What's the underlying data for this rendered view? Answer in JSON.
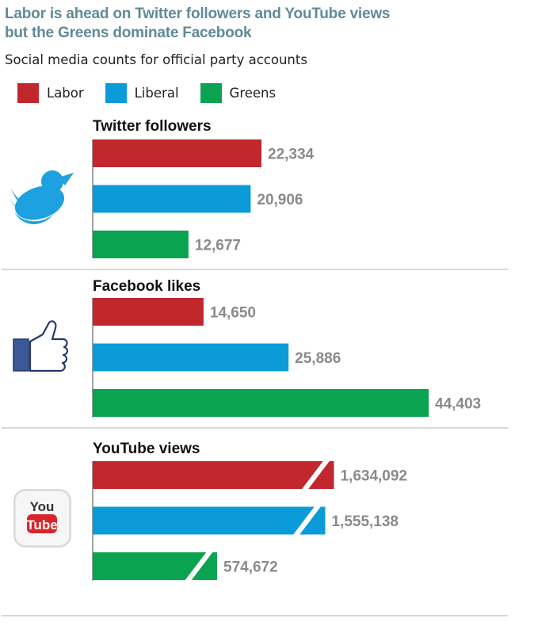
{
  "title": "Labor is ahead on Twitter followers and YouTube views but the Greens dominate Facebook",
  "subtitle": "Social media counts for official party accounts",
  "colors": {
    "Labor": "#c1272d",
    "Liberal": "#0b9bd8",
    "Greens": "#0aa34f"
  },
  "legend": [
    {
      "name": "Labor",
      "color": "#c1272d"
    },
    {
      "name": "Liberal",
      "color": "#0b9bd8"
    },
    {
      "name": "Greens",
      "color": "#0aa34f"
    }
  ],
  "icons": {
    "twitter": "twitter-bird-icon",
    "facebook": "facebook-thumbs-up-icon",
    "youtube": "youtube-logo-icon",
    "youtube_logo_text": [
      "You",
      "Tube"
    ]
  },
  "chart_data": [
    {
      "type": "bar",
      "orientation": "horizontal",
      "title": "Twitter followers",
      "categories": [
        "Labor",
        "Liberal",
        "Greens"
      ],
      "values": [
        22334,
        20906,
        12677
      ],
      "labels": [
        "22,334",
        "20,906",
        "12,677"
      ],
      "axis_break": false
    },
    {
      "type": "bar",
      "orientation": "horizontal",
      "title": "Facebook likes",
      "categories": [
        "Labor",
        "Liberal",
        "Greens"
      ],
      "values": [
        14650,
        25886,
        44403
      ],
      "labels": [
        "14,650",
        "25,886",
        "44,403"
      ],
      "axis_break": false
    },
    {
      "type": "bar",
      "orientation": "horizontal",
      "title": "YouTube views",
      "categories": [
        "Labor",
        "Liberal",
        "Greens"
      ],
      "values": [
        1634092,
        1555138,
        574672
      ],
      "labels": [
        "1,634,092",
        "1,555,138",
        "574,672"
      ],
      "axis_break": true
    }
  ]
}
